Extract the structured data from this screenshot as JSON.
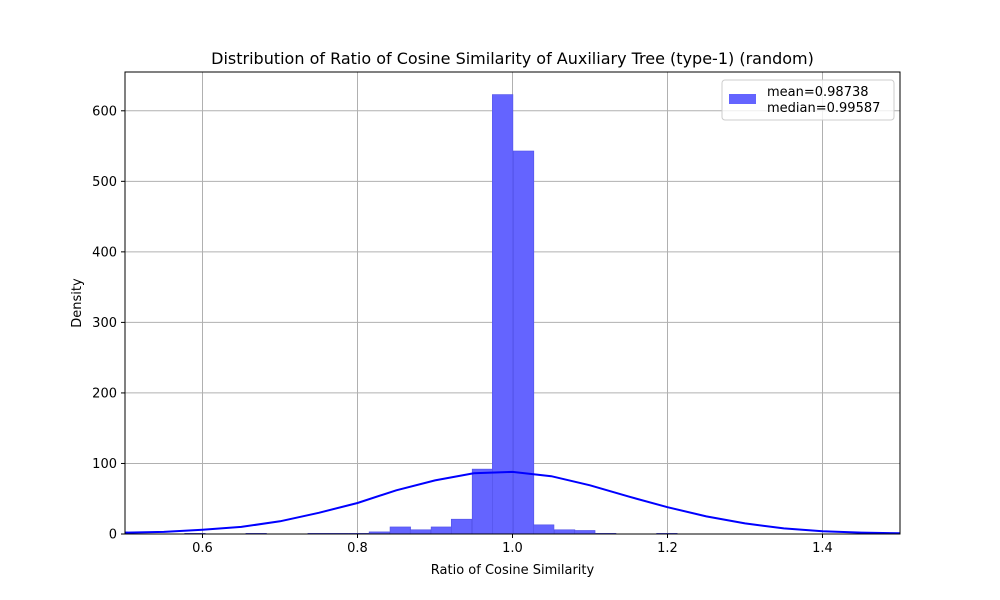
{
  "chart_data": {
    "type": "bar",
    "title": "Distribution of Ratio of Cosine Similarity of Auxiliary Tree (type-1) (random)",
    "xlabel": "Ratio of Cosine Similarity",
    "ylabel": "Density",
    "xlim": [
      0.5,
      1.5
    ],
    "ylim": [
      0,
      655
    ],
    "x_ticks": [
      0.6,
      0.8,
      1.0,
      1.2,
      1.4
    ],
    "x_tick_labels": [
      "0.6",
      "0.8",
      "1.0",
      "1.2",
      "1.4"
    ],
    "y_ticks": [
      0,
      100,
      200,
      300,
      400,
      500,
      600
    ],
    "y_tick_labels": [
      "0",
      "100",
      "200",
      "300",
      "400",
      "500",
      "600"
    ],
    "grid": true,
    "legend": {
      "position": "upper-right",
      "entries": [
        "mean=0.98738",
        "median=0.99587"
      ]
    },
    "colors": {
      "bars": "#6464ff",
      "bar_edge": "#5050e6",
      "curve": "#0000ff",
      "grid": "#b0b0b0"
    },
    "histogram": {
      "bin_width": 0.0265,
      "bin_lefts": [
        0.577,
        0.656,
        0.736,
        0.762,
        0.789,
        0.815,
        0.842,
        0.868,
        0.895,
        0.921,
        0.948,
        0.974,
        1.001,
        1.027,
        1.054,
        1.08,
        1.107,
        1.186
      ],
      "values": [
        1,
        1,
        1,
        1,
        1,
        3,
        10,
        6,
        10,
        21,
        92,
        623,
        543,
        13,
        6,
        5,
        1,
        1
      ]
    },
    "curve": {
      "x": [
        0.5,
        0.55,
        0.6,
        0.65,
        0.7,
        0.75,
        0.8,
        0.85,
        0.9,
        0.95,
        1.0,
        1.05,
        1.1,
        1.15,
        1.2,
        1.25,
        1.3,
        1.35,
        1.4,
        1.45,
        1.5
      ],
      "y": [
        2,
        3,
        6,
        10,
        18,
        30,
        44,
        62,
        76,
        86,
        88,
        82,
        69,
        53,
        38,
        25,
        15,
        8,
        4,
        2,
        1
      ]
    }
  }
}
